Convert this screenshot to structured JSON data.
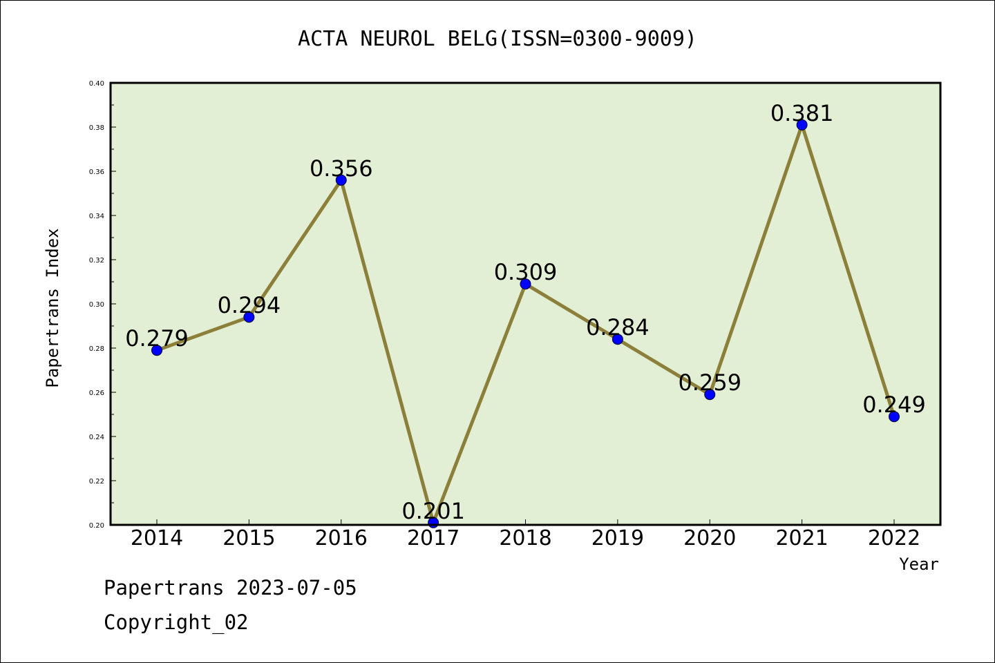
{
  "chart_data": {
    "type": "line",
    "title": "ACTA NEUROL BELG(ISSN=0300-9009)",
    "xlabel": "Year",
    "ylabel": "Papertrans Index",
    "categories": [
      "2014",
      "2015",
      "2016",
      "2017",
      "2018",
      "2019",
      "2020",
      "2021",
      "2022"
    ],
    "series": [
      {
        "values": [
          0.279,
          0.294,
          0.356,
          0.201,
          0.309,
          0.284,
          0.259,
          0.381,
          0.249
        ],
        "labels": [
          "0.279",
          "0.294",
          "0.356",
          "0.201",
          "0.309",
          "0.284",
          "0.259",
          "0.381",
          "0.249"
        ]
      }
    ],
    "ylim": [
      0.2,
      0.4
    ],
    "yticks": [
      "0.20",
      "0.22",
      "0.24",
      "0.26",
      "0.28",
      "0.30",
      "0.32",
      "0.34",
      "0.36",
      "0.38",
      "0.40"
    ],
    "grid": false,
    "legend": "none",
    "colors": {
      "plot_background": "#e2efd5",
      "line": "#8b7f3a",
      "marker": "#0000ff"
    }
  },
  "footer": {
    "line1": "Papertrans 2023-07-05",
    "line2": "Copyright_02"
  }
}
